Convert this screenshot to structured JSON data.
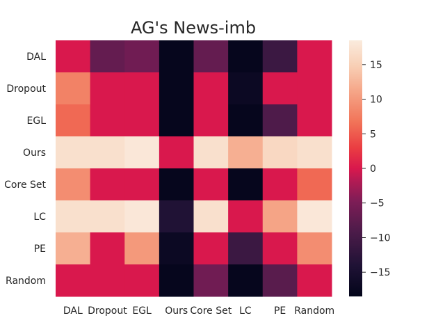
{
  "chart_data": {
    "type": "heatmap",
    "title": "AG's News-imb",
    "xlabel": "",
    "ylabel": "",
    "x_categories": [
      "DAL",
      "Dropout",
      "EGL",
      "Ours",
      "Core Set",
      "LC",
      "PE",
      "Random"
    ],
    "y_categories": [
      "DAL",
      "Dropout",
      "EGL",
      "Ours",
      "Core Set",
      "LC",
      "PE",
      "Random"
    ],
    "values": [
      [
        0,
        -7,
        -6,
        -18,
        -7,
        -18,
        -11,
        0
      ],
      [
        8,
        0,
        0,
        -18,
        0,
        -17,
        0,
        0
      ],
      [
        6,
        0,
        0,
        -18,
        0,
        -18,
        -9,
        0
      ],
      [
        17,
        17,
        18,
        0,
        17,
        12,
        16,
        17
      ],
      [
        9,
        0,
        0,
        -18,
        0,
        -18,
        0,
        6
      ],
      [
        17,
        17,
        18,
        -14,
        17,
        0,
        11,
        18
      ],
      [
        12,
        0,
        10,
        -17,
        0,
        -11,
        0,
        9
      ],
      [
        0,
        0,
        0,
        -18,
        -6,
        -18,
        -8,
        0
      ]
    ],
    "colorbar": {
      "min": -18.5,
      "max": 18.5,
      "ticks": [
        15,
        10,
        5,
        0,
        -5,
        -10,
        -15
      ],
      "tick_labels": [
        "15",
        "10",
        "5",
        "0",
        "−5",
        "−10",
        "−15"
      ]
    },
    "colormap": "rocket",
    "grid": false
  }
}
